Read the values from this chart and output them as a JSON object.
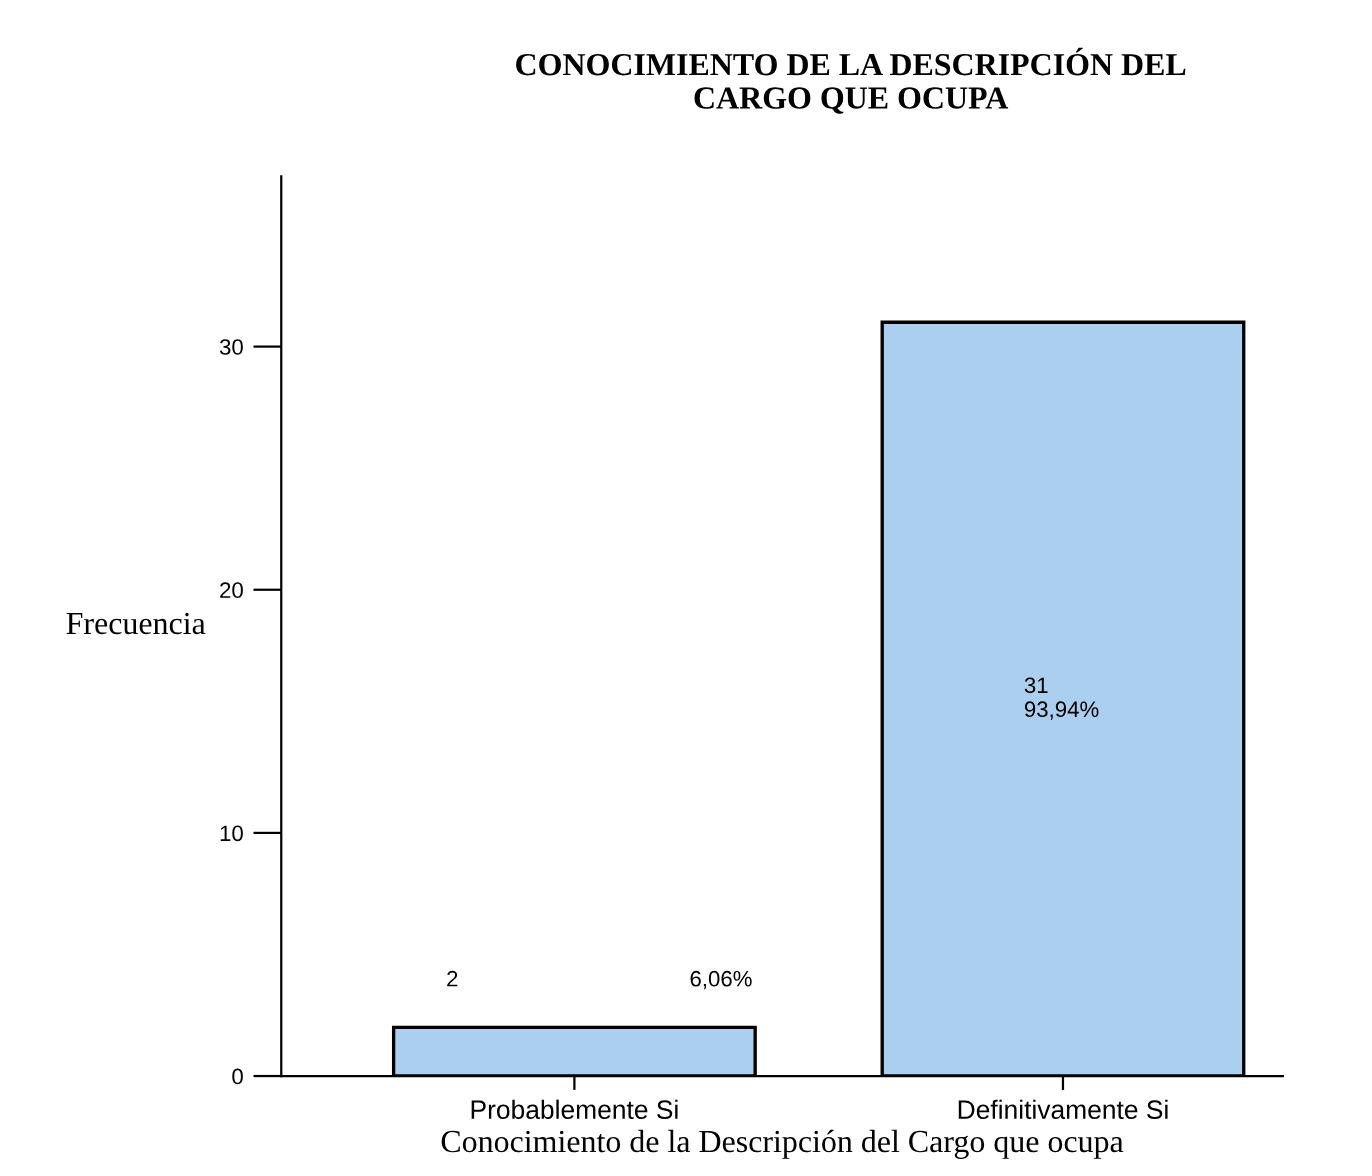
{
  "chart_data": {
    "type": "bar",
    "title": "CONOCIMIENTO DE LA DESCRIPCIÓN DEL\nCARGO QUE OCUPA",
    "xlabel": "Conocimiento de la Descripción del Cargo que ocupa",
    "ylabel": "Frecuencia",
    "categories": [
      "Probablemente Si",
      "Definitivamente Si"
    ],
    "values": [
      2,
      31
    ],
    "color": "#abcfee",
    "value_labels": [
      "2 6,06%",
      "31 93,94%"
    ],
    "ylim": [
      0,
      37
    ],
    "yticks": [
      0,
      10,
      20,
      30
    ],
    "grid": false,
    "legend": false
  }
}
